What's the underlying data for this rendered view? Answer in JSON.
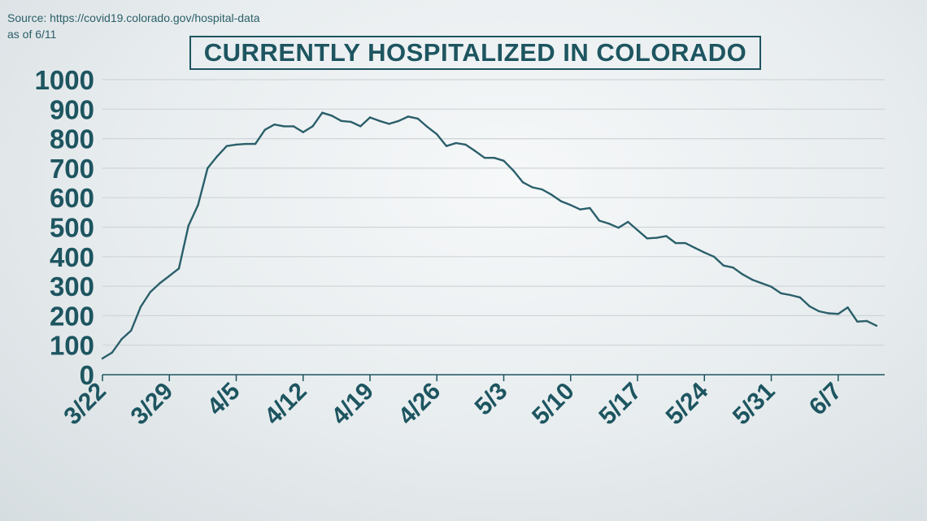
{
  "source": {
    "line1": "Source: https://covid19.colorado.gov/hospital-data",
    "line2": "as of 6/11"
  },
  "chart_data": {
    "type": "line",
    "title": "CURRENTLY HOSPITALIZED IN COLORADO",
    "xlabel": "",
    "ylabel": "",
    "ylim": [
      0,
      1000
    ],
    "yticks": [
      "0",
      "100",
      "200",
      "300",
      "400",
      "500",
      "600",
      "700",
      "800",
      "900",
      "1000"
    ],
    "xticks": [
      "3/22",
      "3/29",
      "4/5",
      "4/12",
      "4/19",
      "4/26",
      "5/3",
      "5/10",
      "5/17",
      "5/24",
      "5/31",
      "6/7"
    ],
    "grid": true,
    "legend": "none",
    "colors": {
      "line": "#2a5f6a",
      "grid": "#cfd5d7",
      "axis": "#1d5560"
    },
    "series": [
      {
        "values": [
          55,
          75,
          120,
          150,
          230,
          280,
          310,
          335,
          360,
          505,
          575,
          700,
          740,
          775,
          780,
          782,
          782,
          830,
          848,
          842,
          842,
          822,
          842,
          888,
          878,
          860,
          857,
          842,
          872,
          860,
          850,
          860,
          875,
          868,
          840,
          815,
          775,
          785,
          780,
          758,
          735,
          735,
          725,
          692,
          652,
          635,
          628,
          610,
          588,
          575,
          560,
          565,
          522,
          512,
          498,
          518,
          490,
          462,
          464,
          470,
          446,
          446,
          430,
          414,
          400,
          370,
          363,
          340,
          322,
          310,
          298,
          276,
          270,
          262,
          232,
          215,
          208,
          206,
          228,
          180,
          182,
          166
        ]
      }
    ]
  }
}
